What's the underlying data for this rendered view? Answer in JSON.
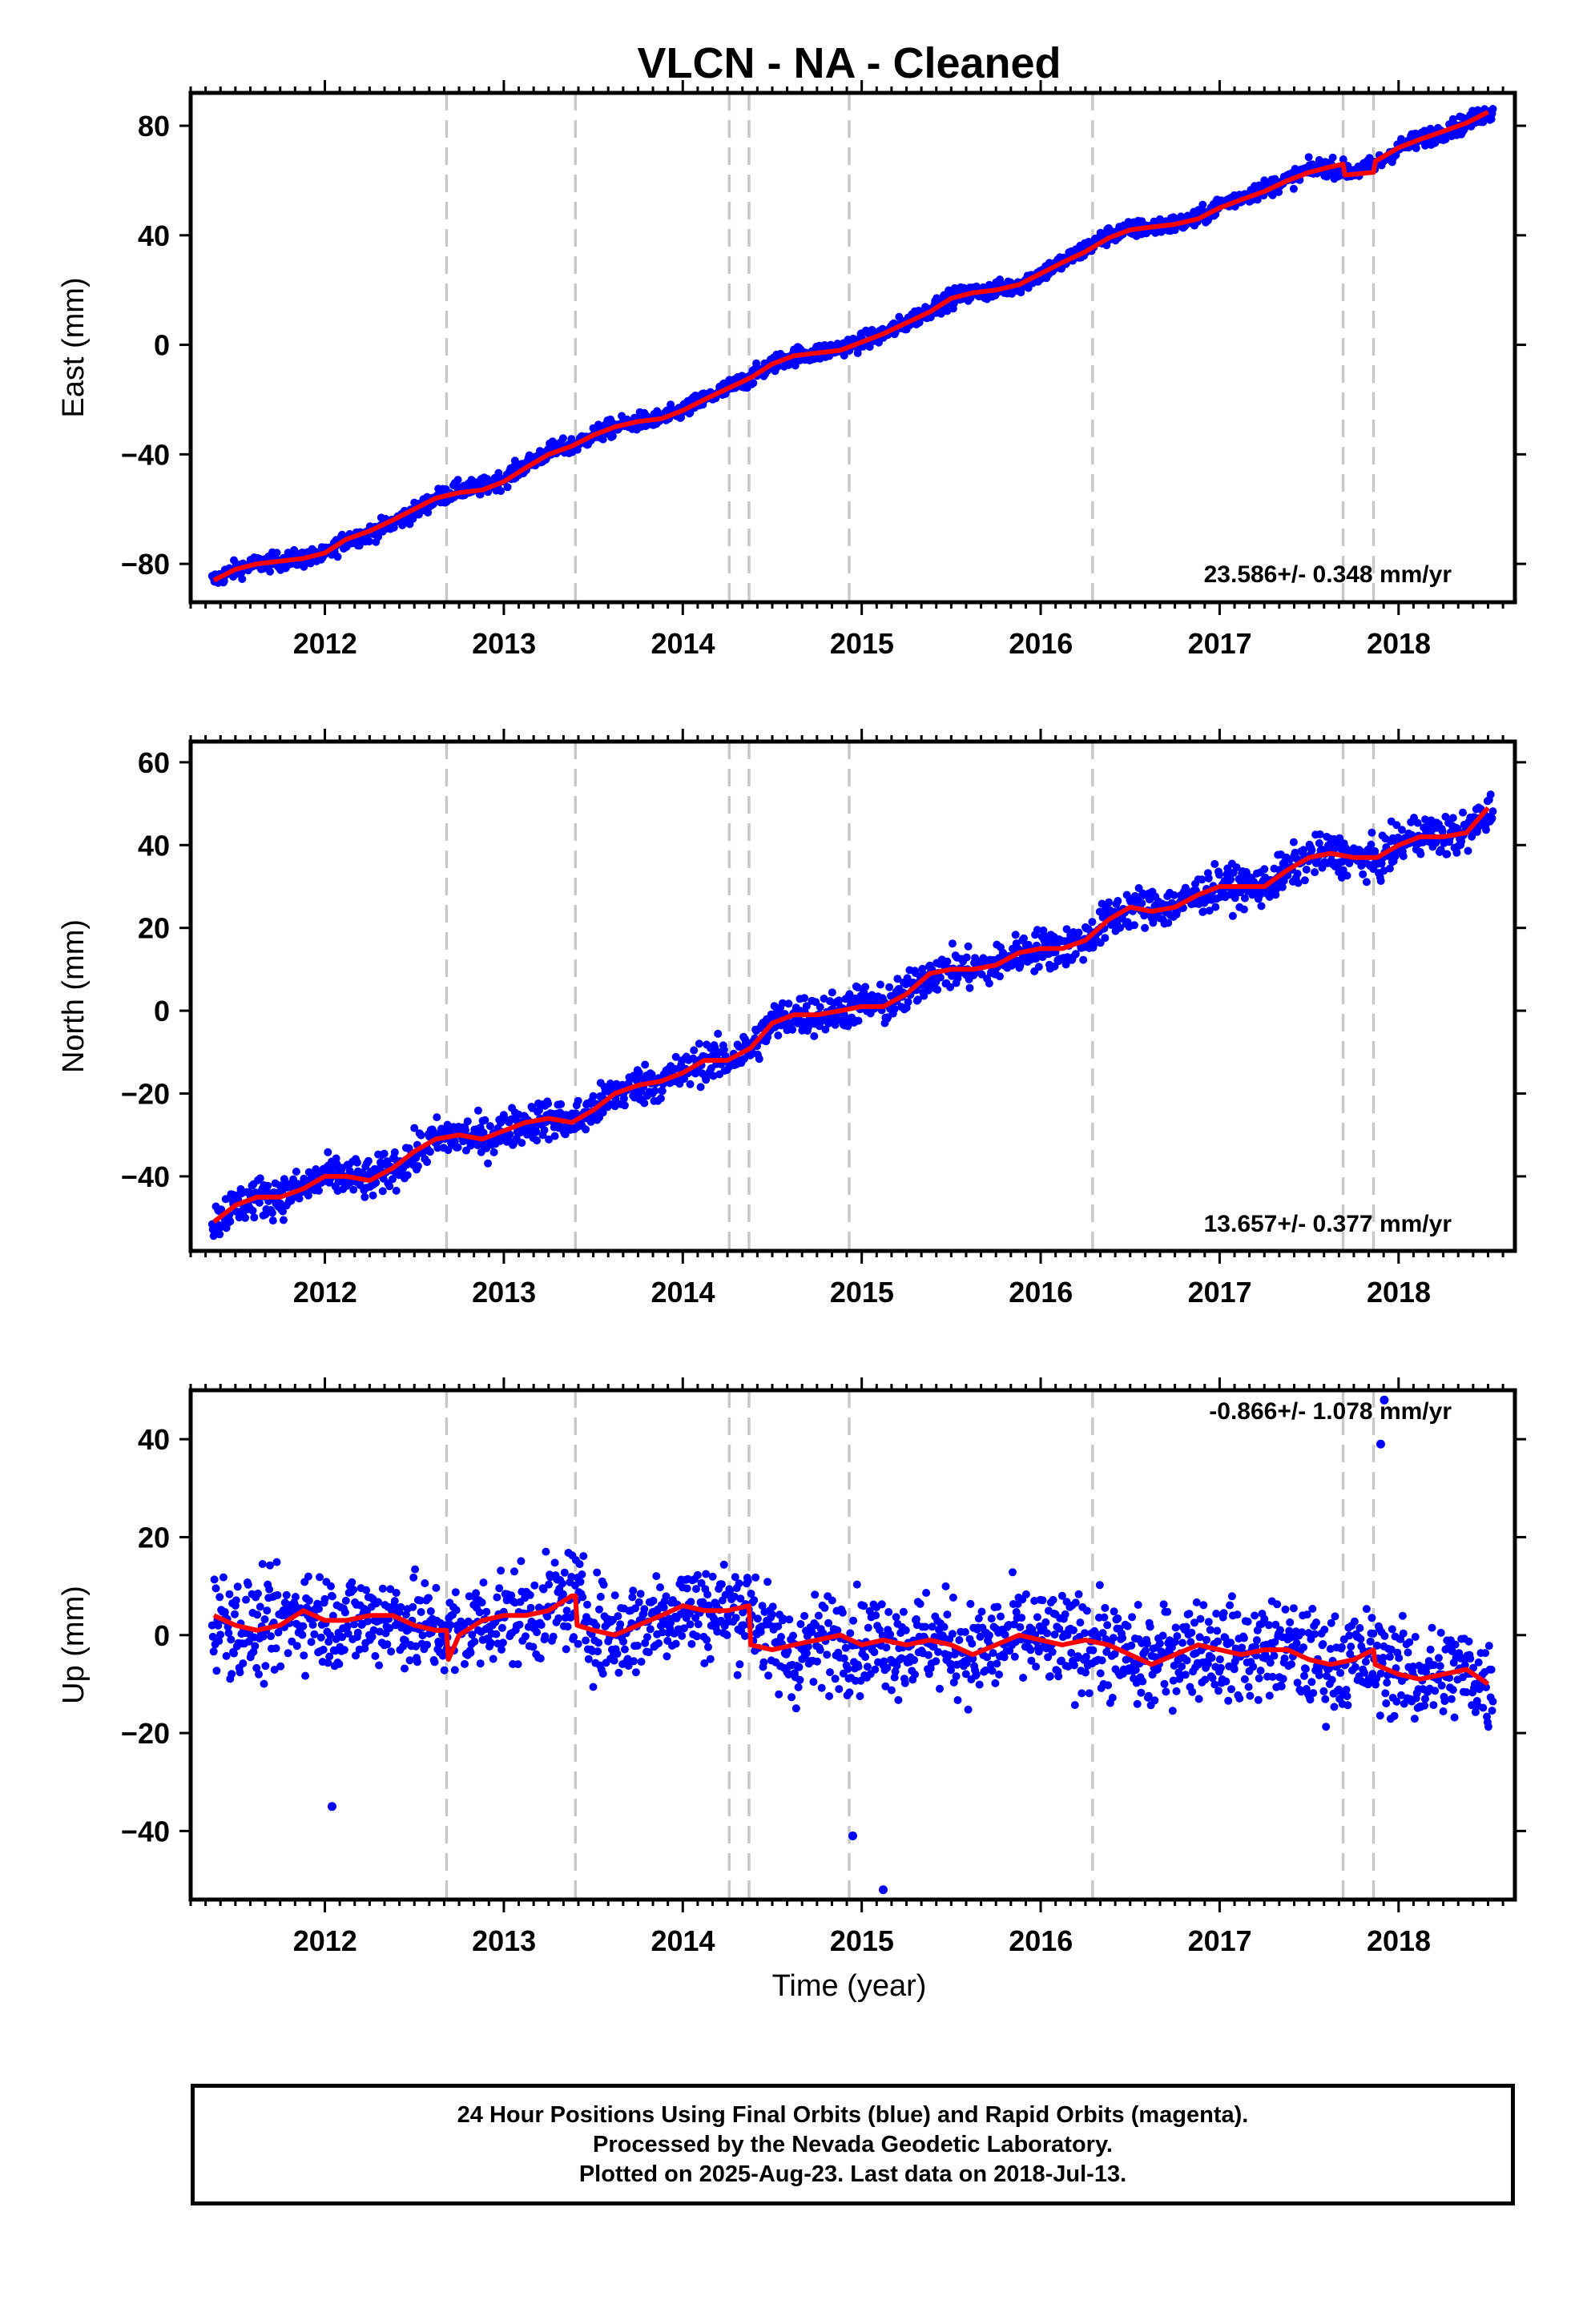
{
  "title": "VLCN  - NA - Cleaned",
  "x_axis_label": "Time (year)",
  "footer": {
    "line1": "24 Hour Positions Using Final Orbits (blue) and Rapid Orbits (magenta).",
    "line2": "Processed by the Nevada Geodetic Laboratory.",
    "line3": "Plotted on 2025-Aug-23. Last data on 2018-Jul-13."
  },
  "colors": {
    "final_orbits": "#0000ff",
    "model": "#ff0000",
    "event_lines": "#c8c8c8",
    "frame": "#000000"
  },
  "chart_data": [
    {
      "type": "scatter",
      "ylabel": "East (mm)",
      "rate": "23.586+/- 0.348 mm/yr",
      "xlim": [
        2011.25,
        2018.65
      ],
      "ylim": [
        -94,
        92
      ],
      "yticks": [
        -80,
        -40,
        0,
        40,
        80
      ],
      "xticks": [
        2012,
        2013,
        2014,
        2015,
        2016,
        2017,
        2018
      ],
      "event_lines": [
        2012.68,
        2013.4,
        2014.26,
        2014.37,
        2014.93,
        2016.29,
        2017.69,
        2017.86
      ],
      "series": [
        {
          "role": "observations",
          "x": [
            2011.38,
            2011.5,
            2011.62,
            2011.75,
            2011.88,
            2012.0,
            2012.12,
            2012.25,
            2012.38,
            2012.5,
            2012.62,
            2012.75,
            2012.88,
            2013.0,
            2013.12,
            2013.25,
            2013.38,
            2013.5,
            2013.62,
            2013.75,
            2013.88,
            2014.0,
            2014.12,
            2014.25,
            2014.38,
            2014.5,
            2014.62,
            2014.75,
            2014.88,
            2015.0,
            2015.12,
            2015.25,
            2015.38,
            2015.5,
            2015.62,
            2015.75,
            2015.88,
            2016.0,
            2016.12,
            2016.25,
            2016.38,
            2016.5,
            2016.62,
            2016.75,
            2016.88,
            2017.0,
            2017.12,
            2017.25,
            2017.38,
            2017.5,
            2017.62,
            2017.75,
            2017.88,
            2018.0,
            2018.12,
            2018.25,
            2018.38,
            2018.5
          ],
          "y": [
            -86,
            -82,
            -80,
            -79,
            -78,
            -77,
            -71,
            -69,
            -65,
            -61,
            -56,
            -53,
            -52,
            -49,
            -44,
            -39,
            -37,
            -33,
            -30,
            -28,
            -27,
            -24,
            -20,
            -16,
            -12,
            -7,
            -4,
            -3,
            -1,
            1,
            4,
            8,
            13,
            17,
            19,
            20,
            22,
            26,
            30,
            35,
            40,
            42,
            43,
            44,
            46,
            51,
            54,
            57,
            60,
            64,
            65,
            63,
            66,
            72,
            75,
            78,
            81,
            85
          ]
        },
        {
          "role": "model",
          "x": [
            2011.38,
            2011.5,
            2011.62,
            2011.75,
            2011.88,
            2012.0,
            2012.12,
            2012.25,
            2012.38,
            2012.5,
            2012.62,
            2012.75,
            2012.88,
            2013.0,
            2013.12,
            2013.25,
            2013.38,
            2013.5,
            2013.62,
            2013.75,
            2013.88,
            2014.0,
            2014.12,
            2014.25,
            2014.38,
            2014.5,
            2014.62,
            2014.75,
            2014.88,
            2015.0,
            2015.12,
            2015.25,
            2015.38,
            2015.5,
            2015.62,
            2015.75,
            2015.88,
            2016.0,
            2016.12,
            2016.25,
            2016.38,
            2016.5,
            2016.62,
            2016.75,
            2016.88,
            2017.0,
            2017.12,
            2017.25,
            2017.38,
            2017.5,
            2017.62,
            2017.69,
            2017.7,
            2017.86,
            2017.87,
            2018.0,
            2018.12,
            2018.25,
            2018.38,
            2018.5
          ],
          "y": [
            -86,
            -82,
            -80,
            -79,
            -78,
            -76,
            -71,
            -68,
            -64,
            -60,
            -56,
            -54,
            -53,
            -50,
            -45,
            -40,
            -37,
            -33,
            -30,
            -28,
            -27,
            -24,
            -20,
            -16,
            -12,
            -7,
            -4,
            -3,
            -2,
            1,
            4,
            8,
            12,
            17,
            19,
            20,
            22,
            26,
            30,
            34,
            39,
            42,
            43,
            44,
            46,
            50,
            53,
            56,
            60,
            63,
            65,
            66,
            62,
            63,
            67,
            72,
            75,
            78,
            81,
            85
          ]
        }
      ]
    },
    {
      "type": "scatter",
      "ylabel": "North (mm)",
      "rate": "13.657+/- 0.377 mm/yr",
      "xlim": [
        2011.25,
        2018.65
      ],
      "ylim": [
        -58,
        65
      ],
      "yticks": [
        -40,
        -20,
        0,
        20,
        40,
        60
      ],
      "xticks": [
        2012,
        2013,
        2014,
        2015,
        2016,
        2017,
        2018
      ],
      "event_lines": [
        2012.68,
        2013.4,
        2014.26,
        2014.37,
        2014.93,
        2016.29,
        2017.69,
        2017.86
      ],
      "series": [
        {
          "role": "observations",
          "x": [
            2011.38,
            2011.5,
            2011.62,
            2011.75,
            2011.88,
            2012.0,
            2012.12,
            2012.25,
            2012.38,
            2012.5,
            2012.62,
            2012.75,
            2012.88,
            2013.0,
            2013.12,
            2013.25,
            2013.38,
            2013.5,
            2013.62,
            2013.75,
            2013.88,
            2014.0,
            2014.12,
            2014.25,
            2014.38,
            2014.5,
            2014.62,
            2014.75,
            2014.88,
            2015.0,
            2015.12,
            2015.25,
            2015.38,
            2015.5,
            2015.62,
            2015.75,
            2015.88,
            2016.0,
            2016.12,
            2016.25,
            2016.38,
            2016.5,
            2016.62,
            2016.75,
            2016.88,
            2017.0,
            2017.12,
            2017.25,
            2017.38,
            2017.5,
            2017.62,
            2017.75,
            2017.88,
            2018.0,
            2018.12,
            2018.25,
            2018.38,
            2018.5
          ],
          "y": [
            -51,
            -47,
            -45,
            -45,
            -43,
            -40,
            -40,
            -41,
            -38,
            -35,
            -31,
            -30,
            -31,
            -29,
            -27,
            -26,
            -27,
            -24,
            -20,
            -18,
            -17,
            -15,
            -12,
            -12,
            -9,
            -3,
            -1,
            -1,
            0,
            2,
            1,
            4,
            9,
            10,
            10,
            11,
            14,
            15,
            15,
            17,
            22,
            25,
            25,
            25,
            28,
            30,
            30,
            30,
            34,
            37,
            38,
            37,
            36,
            40,
            43,
            42,
            43,
            48
          ]
        },
        {
          "role": "model",
          "x": [
            2011.38,
            2011.5,
            2011.62,
            2011.75,
            2011.88,
            2012.0,
            2012.12,
            2012.25,
            2012.38,
            2012.5,
            2012.62,
            2012.75,
            2012.88,
            2013.0,
            2013.12,
            2013.25,
            2013.38,
            2013.5,
            2013.62,
            2013.75,
            2013.88,
            2014.0,
            2014.12,
            2014.25,
            2014.38,
            2014.5,
            2014.62,
            2014.75,
            2014.88,
            2015.0,
            2015.12,
            2015.25,
            2015.38,
            2015.5,
            2015.62,
            2015.75,
            2015.88,
            2016.0,
            2016.12,
            2016.25,
            2016.38,
            2016.5,
            2016.62,
            2016.75,
            2016.88,
            2017.0,
            2017.12,
            2017.25,
            2017.38,
            2017.5,
            2017.62,
            2017.75,
            2017.88,
            2018.0,
            2018.12,
            2018.25,
            2018.38,
            2018.5
          ],
          "y": [
            -51,
            -47,
            -45,
            -45,
            -43,
            -40,
            -40,
            -41,
            -38,
            -34,
            -31,
            -30,
            -31,
            -29,
            -27,
            -26,
            -27,
            -24,
            -20,
            -18,
            -17,
            -15,
            -12,
            -12,
            -9,
            -3,
            -1,
            -1,
            0,
            1,
            1,
            4,
            9,
            10,
            10,
            11,
            14,
            15,
            15,
            17,
            22,
            25,
            24,
            25,
            28,
            30,
            30,
            30,
            34,
            37,
            38,
            37,
            37,
            40,
            42,
            42,
            43,
            49
          ]
        }
      ]
    },
    {
      "type": "scatter",
      "ylabel": "Up (mm)",
      "rate": "-0.866+/- 1.078 mm/yr",
      "xlim": [
        2011.25,
        2018.65
      ],
      "ylim": [
        -54,
        50
      ],
      "yticks": [
        -40,
        -20,
        0,
        20,
        40
      ],
      "xticks": [
        2012,
        2013,
        2014,
        2015,
        2016,
        2017,
        2018
      ],
      "event_lines": [
        2012.68,
        2013.4,
        2014.26,
        2014.37,
        2014.93,
        2016.29,
        2017.69,
        2017.86
      ],
      "series": [
        {
          "role": "observations",
          "x": [
            2011.38,
            2011.5,
            2011.62,
            2011.75,
            2011.88,
            2012.0,
            2012.12,
            2012.25,
            2012.38,
            2012.5,
            2012.62,
            2012.75,
            2012.88,
            2013.0,
            2013.12,
            2013.25,
            2013.38,
            2013.5,
            2013.62,
            2013.75,
            2013.88,
            2014.0,
            2014.12,
            2014.25,
            2014.38,
            2014.5,
            2014.62,
            2014.75,
            2014.88,
            2015.0,
            2015.12,
            2015.25,
            2015.38,
            2015.5,
            2015.62,
            2015.75,
            2015.88,
            2016.0,
            2016.12,
            2016.25,
            2016.38,
            2016.5,
            2016.62,
            2016.75,
            2016.88,
            2017.0,
            2017.12,
            2017.25,
            2017.38,
            2017.5,
            2017.62,
            2017.75,
            2017.88,
            2018.0,
            2018.12,
            2018.25,
            2018.38,
            2018.5,
            2012.04,
            2014.95,
            2015.12,
            2017.92,
            2017.9
          ],
          "y": [
            4,
            2,
            1,
            2,
            5,
            3,
            3,
            3,
            4,
            2,
            1,
            0,
            3,
            4,
            4,
            5,
            8,
            2,
            0,
            2,
            4,
            6,
            5,
            5,
            6,
            -2,
            -4,
            -2,
            0,
            -2,
            -1,
            -2,
            -1,
            -2,
            -4,
            -2,
            0,
            -1,
            -2,
            -1,
            -3,
            -5,
            -6,
            -3,
            -2,
            -3,
            -4,
            -3,
            -3,
            -5,
            -6,
            -5,
            -5,
            -7,
            -9,
            -8,
            -7,
            -10,
            -35,
            -41,
            -52,
            48,
            39
          ]
        },
        {
          "role": "model",
          "x": [
            2011.38,
            2011.5,
            2011.62,
            2011.75,
            2011.88,
            2012.0,
            2012.12,
            2012.25,
            2012.38,
            2012.5,
            2012.62,
            2012.68,
            2012.69,
            2012.75,
            2012.88,
            2013.0,
            2013.12,
            2013.25,
            2013.38,
            2013.4,
            2013.41,
            2013.5,
            2013.62,
            2013.75,
            2013.88,
            2014.0,
            2014.12,
            2014.25,
            2014.37,
            2014.38,
            2014.5,
            2014.62,
            2014.75,
            2014.88,
            2015.0,
            2015.12,
            2015.25,
            2015.38,
            2015.5,
            2015.62,
            2015.75,
            2015.88,
            2016.0,
            2016.12,
            2016.25,
            2016.38,
            2016.5,
            2016.62,
            2016.75,
            2016.88,
            2017.0,
            2017.12,
            2017.25,
            2017.38,
            2017.5,
            2017.62,
            2017.75,
            2017.86,
            2017.87,
            2018.0,
            2018.12,
            2018.25,
            2018.38,
            2018.5
          ],
          "y": [
            4,
            2,
            1,
            2,
            5,
            3,
            3,
            4,
            4,
            2,
            1,
            1,
            -5,
            0,
            3,
            4,
            4,
            5,
            8,
            8,
            2,
            1,
            0,
            2,
            4,
            6,
            5,
            5,
            6,
            -2,
            -3,
            -2,
            -1,
            0,
            -2,
            -1,
            -2,
            -1,
            -2,
            -4,
            -2,
            0,
            -1,
            -2,
            -1,
            -2,
            -4,
            -6,
            -4,
            -2,
            -3,
            -4,
            -3,
            -3,
            -5,
            -6,
            -5,
            -3,
            -6,
            -8,
            -9,
            -8,
            -7,
            -10
          ]
        }
      ]
    }
  ]
}
